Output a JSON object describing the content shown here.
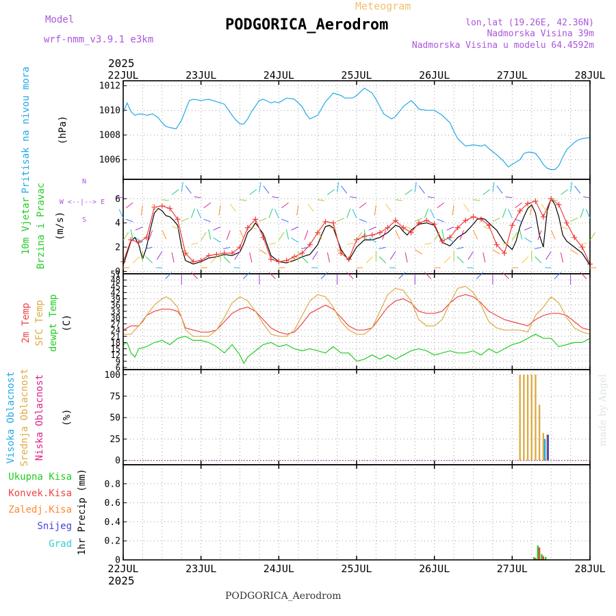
{
  "header": {
    "model_label": "Model",
    "model_value": "wrf-nmm_v3.9.1  e3km",
    "title": "Meteogram",
    "station": "PODGORICA_Aerodrom",
    "lonlat": "lon,lat (19.26E, 42.36N)",
    "elevation": "Nadmorska Visina 39m",
    "model_elevation": "Nadmorska Visina u modelu 64.4592m",
    "year": "2025",
    "footer_station": "PODGORICA_Aerodrom",
    "watermark": "made by Angel"
  },
  "chart_data": [
    {
      "type": "line",
      "id": "pressure",
      "ylabel": [
        "Pritisak na nivou mora",
        "(hPa)"
      ],
      "ylim": [
        1004.4,
        1012.4
      ],
      "yticks": [
        1006,
        1008,
        1010,
        1012
      ],
      "x_days": [
        "22JUL",
        "23JUL",
        "24JUL",
        "25JUL",
        "26JUL",
        "27JUL",
        "28JUL"
      ],
      "series": [
        {
          "name": "Pressure",
          "color": "#22a8e6",
          "x": [
            0.0,
            0.05,
            0.1,
            0.15,
            0.2,
            0.25,
            0.3,
            0.38,
            0.45,
            0.5,
            0.55,
            0.6,
            0.68,
            0.75,
            0.8,
            0.85,
            0.9,
            1.0,
            1.1,
            1.15,
            1.2,
            1.3,
            1.4,
            1.45,
            1.5,
            1.55,
            1.6,
            1.65,
            1.75,
            1.8,
            1.9,
            1.95,
            2.0,
            2.05,
            2.1,
            2.2,
            2.3,
            2.35,
            2.4,
            2.5,
            2.6,
            2.7,
            2.8,
            2.85,
            2.9,
            2.95,
            3.0,
            3.05,
            3.1,
            3.2,
            3.25,
            3.35,
            3.45,
            3.5,
            3.6,
            3.7,
            3.75,
            3.8,
            3.9,
            4.0,
            4.05,
            4.1,
            4.2,
            4.25,
            4.3,
            4.4,
            4.5,
            4.6,
            4.65,
            4.7,
            4.8,
            4.9,
            4.95,
            5.0,
            5.05,
            5.1,
            5.15,
            5.2,
            5.25,
            5.3,
            5.35,
            5.4,
            5.45,
            5.5,
            5.55,
            5.6,
            5.65,
            5.7,
            5.8,
            5.85,
            5.9,
            6.0
          ],
          "values": [
            1009.8,
            1010.6,
            1009.9,
            1009.6,
            1009.7,
            1009.7,
            1009.6,
            1009.7,
            1009.4,
            1009.0,
            1008.7,
            1008.6,
            1008.5,
            1009.2,
            1010.0,
            1010.8,
            1010.9,
            1010.8,
            1010.9,
            1010.8,
            1010.7,
            1010.5,
            1009.6,
            1009.2,
            1008.9,
            1008.9,
            1009.3,
            1009.9,
            1010.8,
            1010.9,
            1010.6,
            1010.7,
            1010.6,
            1010.8,
            1011.0,
            1010.9,
            1010.3,
            1009.7,
            1009.3,
            1009.6,
            1010.7,
            1011.4,
            1011.2,
            1011.0,
            1011.0,
            1011.0,
            1011.2,
            1011.5,
            1011.8,
            1011.4,
            1010.9,
            1009.7,
            1009.3,
            1009.5,
            1010.3,
            1010.8,
            1010.5,
            1010.1,
            1010.0,
            1010.0,
            1009.8,
            1009.6,
            1009.0,
            1008.3,
            1007.7,
            1007.1,
            1007.2,
            1007.1,
            1007.2,
            1006.9,
            1006.4,
            1005.8,
            1005.4,
            1005.6,
            1005.8,
            1006.0,
            1006.5,
            1006.6,
            1006.6,
            1006.5,
            1006.1,
            1005.6,
            1005.3,
            1005.2,
            1005.2,
            1005.5,
            1006.2,
            1006.8,
            1007.4,
            1007.6,
            1007.7,
            1007.8
          ]
        }
      ]
    },
    {
      "type": "line",
      "id": "wind",
      "ylabel": [
        "10m Vjetar",
        "Brzina i Pravac",
        "(m/s)"
      ],
      "compass": "W <--|--> E",
      "compass_sub": "N",
      "compass_sub2": "S",
      "ylim": [
        -0.2,
        7.6
      ],
      "yticks": [
        0,
        2,
        4,
        6
      ],
      "series": [
        {
          "name": "Wind speed",
          "color": "#000000",
          "x": [
            0.0,
            0.05,
            0.1,
            0.15,
            0.2,
            0.25,
            0.3,
            0.35,
            0.4,
            0.45,
            0.5,
            0.55,
            0.6,
            0.65,
            0.7,
            0.75,
            0.8,
            0.9,
            1.0,
            1.1,
            1.2,
            1.3,
            1.4,
            1.5,
            1.55,
            1.6,
            1.65,
            1.7,
            1.8,
            1.9,
            2.0,
            2.1,
            2.2,
            2.3,
            2.4,
            2.5,
            2.55,
            2.6,
            2.65,
            2.7,
            2.8,
            2.9,
            3.0,
            3.1,
            3.2,
            3.3,
            3.4,
            3.5,
            3.55,
            3.6,
            3.65,
            3.7,
            3.8,
            3.9,
            4.0,
            4.1,
            4.2,
            4.3,
            4.4,
            4.5,
            4.55,
            4.6,
            4.65,
            4.7,
            4.8,
            4.9,
            5.0,
            5.05,
            5.1,
            5.15,
            5.2,
            5.25,
            5.3,
            5.35,
            5.4,
            5.45,
            5.5,
            5.55,
            5.6,
            5.65,
            5.7,
            5.8,
            5.9,
            6.0
          ],
          "values": [
            0.5,
            1.5,
            2.5,
            2.8,
            2.2,
            1.0,
            2.0,
            3.5,
            4.8,
            5.2,
            5.0,
            4.6,
            4.5,
            4.2,
            3.8,
            2.0,
            0.9,
            0.6,
            0.8,
            1.1,
            1.2,
            1.4,
            1.3,
            1.6,
            2.3,
            3.2,
            3.5,
            4.0,
            3.1,
            1.3,
            0.8,
            0.7,
            0.9,
            1.2,
            1.4,
            2.2,
            3.0,
            3.7,
            3.8,
            3.6,
            1.8,
            0.9,
            2.0,
            2.6,
            2.6,
            2.8,
            3.2,
            3.8,
            3.7,
            3.3,
            3.0,
            3.4,
            3.9,
            4.0,
            3.8,
            2.4,
            2.1,
            2.8,
            3.2,
            3.9,
            4.3,
            4.4,
            4.3,
            4.0,
            3.4,
            2.4,
            1.8,
            2.5,
            3.7,
            4.5,
            5.2,
            5.5,
            4.8,
            3.0,
            2.0,
            5.0,
            6.0,
            5.5,
            4.5,
            3.0,
            2.5,
            2.0,
            1.5,
            0.5
          ]
        },
        {
          "name": "Gust",
          "color": "#ee3b3b",
          "marker": "+",
          "x": [
            0.0,
            0.1,
            0.2,
            0.3,
            0.4,
            0.5,
            0.6,
            0.7,
            0.8,
            0.9,
            1.0,
            1.1,
            1.2,
            1.3,
            1.4,
            1.5,
            1.6,
            1.7,
            1.8,
            1.9,
            2.0,
            2.1,
            2.2,
            2.3,
            2.4,
            2.5,
            2.6,
            2.7,
            2.8,
            2.9,
            3.0,
            3.1,
            3.2,
            3.3,
            3.4,
            3.5,
            3.6,
            3.7,
            3.8,
            3.9,
            4.0,
            4.1,
            4.2,
            4.3,
            4.4,
            4.5,
            4.6,
            4.7,
            4.8,
            4.9,
            5.0,
            5.1,
            5.2,
            5.3,
            5.4,
            5.5,
            5.6,
            5.7,
            5.8,
            5.9,
            6.0
          ],
          "values": [
            0.8,
            2.6,
            2.4,
            2.8,
            5.3,
            5.4,
            5.2,
            4.3,
            1.5,
            0.8,
            0.9,
            1.3,
            1.4,
            1.5,
            1.5,
            2.0,
            3.6,
            4.3,
            2.8,
            1.0,
            0.8,
            0.9,
            1.2,
            1.5,
            2.2,
            3.2,
            4.1,
            4.0,
            1.5,
            1.0,
            2.6,
            2.9,
            3.0,
            3.2,
            3.6,
            4.2,
            3.6,
            3.2,
            4.0,
            4.2,
            3.9,
            2.5,
            2.8,
            3.6,
            4.2,
            4.5,
            4.3,
            3.8,
            2.2,
            1.5,
            3.8,
            5.0,
            5.6,
            5.8,
            4.5,
            6.0,
            5.5,
            4.0,
            2.8,
            2.0,
            0.6
          ]
        }
      ]
    },
    {
      "type": "line",
      "id": "temperature",
      "ylabel": [
        "2m Temp",
        "SFC Temp",
        "dewpt Temp",
        "(C)"
      ],
      "ylim": [
        5,
        51
      ],
      "yticks": [
        6,
        9,
        12,
        15,
        18,
        21,
        24,
        27,
        30,
        33,
        36,
        39,
        42,
        45,
        48,
        51
      ],
      "series": [
        {
          "name": "2m Temp",
          "color": "#ee4444",
          "x": [
            0.0,
            0.1,
            0.2,
            0.25,
            0.3,
            0.4,
            0.5,
            0.6,
            0.7,
            0.75,
            0.8,
            0.9,
            1.0,
            1.1,
            1.2,
            1.3,
            1.4,
            1.5,
            1.6,
            1.7,
            1.8,
            1.9,
            2.0,
            2.1,
            2.2,
            2.3,
            2.4,
            2.5,
            2.6,
            2.7,
            2.8,
            2.9,
            3.0,
            3.1,
            3.2,
            3.3,
            3.4,
            3.5,
            3.6,
            3.7,
            3.8,
            3.9,
            4.0,
            4.1,
            4.2,
            4.3,
            4.4,
            4.5,
            4.6,
            4.7,
            4.8,
            4.9,
            5.0,
            5.1,
            5.2,
            5.3,
            5.4,
            5.5,
            5.6,
            5.7,
            5.8,
            5.9,
            6.0
          ],
          "values": [
            24,
            26,
            26,
            28,
            31,
            33,
            34,
            34,
            33,
            30,
            25,
            24,
            23,
            23,
            24,
            28,
            32,
            34,
            35,
            33,
            29,
            25,
            23,
            22,
            23,
            27,
            32,
            34,
            36,
            34,
            30,
            26,
            24,
            24,
            25,
            30,
            35,
            38,
            39,
            37,
            33,
            32,
            32,
            33,
            37,
            40,
            41,
            40,
            37,
            33,
            31,
            29,
            28,
            27,
            26,
            29,
            31,
            32,
            32,
            31,
            28,
            25,
            24
          ]
        },
        {
          "name": "SFC Temp",
          "color": "#ddaa44",
          "x": [
            0.0,
            0.1,
            0.2,
            0.3,
            0.4,
            0.5,
            0.55,
            0.6,
            0.7,
            0.75,
            0.8,
            0.9,
            1.0,
            1.1,
            1.2,
            1.3,
            1.4,
            1.5,
            1.6,
            1.7,
            1.8,
            1.9,
            2.0,
            2.1,
            2.2,
            2.3,
            2.4,
            2.5,
            2.6,
            2.7,
            2.8,
            2.9,
            3.0,
            3.1,
            3.2,
            3.3,
            3.4,
            3.5,
            3.6,
            3.7,
            3.8,
            3.9,
            4.0,
            4.1,
            4.2,
            4.3,
            4.4,
            4.5,
            4.6,
            4.7,
            4.8,
            4.9,
            5.0,
            5.1,
            5.2,
            5.3,
            5.4,
            5.5,
            5.6,
            5.7,
            5.8,
            5.9,
            6.0
          ],
          "values": [
            22,
            22,
            26,
            31,
            36,
            39,
            40,
            39,
            35,
            30,
            24,
            21,
            21,
            21,
            24,
            30,
            37,
            40,
            38,
            33,
            27,
            22,
            21,
            21,
            24,
            31,
            38,
            41,
            40,
            35,
            28,
            24,
            22,
            22,
            25,
            33,
            41,
            44,
            43,
            38,
            29,
            26,
            26,
            29,
            37,
            44,
            45,
            42,
            36,
            28,
            25,
            24,
            24,
            24,
            23,
            31,
            35,
            40,
            37,
            30,
            25,
            23,
            22
          ]
        },
        {
          "name": "dewpt Temp",
          "color": "#22cc22",
          "x": [
            0.0,
            0.05,
            0.1,
            0.15,
            0.2,
            0.3,
            0.4,
            0.5,
            0.6,
            0.7,
            0.8,
            0.9,
            1.0,
            1.1,
            1.2,
            1.3,
            1.4,
            1.5,
            1.55,
            1.6,
            1.7,
            1.8,
            1.9,
            2.0,
            2.1,
            2.2,
            2.3,
            2.4,
            2.5,
            2.6,
            2.7,
            2.8,
            2.9,
            3.0,
            3.1,
            3.2,
            3.3,
            3.4,
            3.5,
            3.6,
            3.7,
            3.8,
            3.9,
            4.0,
            4.1,
            4.2,
            4.3,
            4.4,
            4.5,
            4.6,
            4.7,
            4.8,
            4.9,
            5.0,
            5.1,
            5.2,
            5.3,
            5.4,
            5.5,
            5.6,
            5.7,
            5.8,
            5.9,
            6.0
          ],
          "values": [
            17,
            18,
            13,
            11,
            15,
            16,
            18,
            19,
            17,
            20,
            21,
            19,
            19,
            18,
            16,
            13,
            17,
            12,
            8,
            11,
            14,
            17,
            18,
            16,
            17,
            15,
            14,
            15,
            14,
            13,
            16,
            13,
            13,
            9,
            10,
            12,
            10,
            12,
            10,
            12,
            14,
            15,
            14,
            12,
            13,
            14,
            13,
            13,
            14,
            12,
            15,
            13,
            15,
            17,
            18,
            20,
            22,
            20,
            20,
            16,
            17,
            18,
            18,
            20
          ]
        }
      ]
    },
    {
      "type": "bar",
      "id": "clouds",
      "ylabel": [
        "Visoka Oblacnost",
        "Srednja Oblacnost",
        "Niska Oblacnost",
        "(%)"
      ],
      "ylim": [
        -5,
        106
      ],
      "yticks": [
        0,
        25,
        50,
        75,
        100
      ],
      "series": [
        {
          "name": "Srednja Oblacnost",
          "color": "#ddaa44",
          "x": [
            5.1,
            5.15,
            5.2,
            5.25,
            5.3,
            5.35,
            5.4,
            5.45
          ],
          "values": [
            100,
            100,
            100,
            100,
            100,
            65,
            32,
            30
          ]
        },
        {
          "name": "Visoka Oblacnost",
          "color": "#22a8e6",
          "x": [
            5.42
          ],
          "values": [
            25
          ]
        },
        {
          "name": "Niska Oblacnost",
          "color": "#3333cc",
          "x": [
            5.46
          ],
          "values": [
            30
          ]
        }
      ]
    },
    {
      "type": "bar",
      "id": "precip",
      "ylabel": [
        "1hr Precip (mm)"
      ],
      "legend": [
        "Ukupna Kisa",
        "Konvek.Kisa",
        "Zaledj.Kisa",
        "Snijeg",
        "Grad"
      ],
      "legend_colors": [
        "#22cc22",
        "#ee4444",
        "#ff8833",
        "#4444dd",
        "#33cccc"
      ],
      "ylim": [
        0,
        1.0
      ],
      "yticks": [
        0,
        0.2,
        0.4,
        0.6,
        0.8
      ],
      "series": [
        {
          "name": "Ukupna Kisa",
          "color": "#22cc22",
          "x": [
            5.28,
            5.33,
            5.38,
            5.43
          ],
          "values": [
            0.03,
            0.15,
            0.06,
            0.03
          ]
        },
        {
          "name": "Konvek.Kisa",
          "color": "#ee4444",
          "x": [
            5.3,
            5.35,
            5.4
          ],
          "values": [
            0.02,
            0.13,
            0.04
          ]
        }
      ]
    }
  ]
}
